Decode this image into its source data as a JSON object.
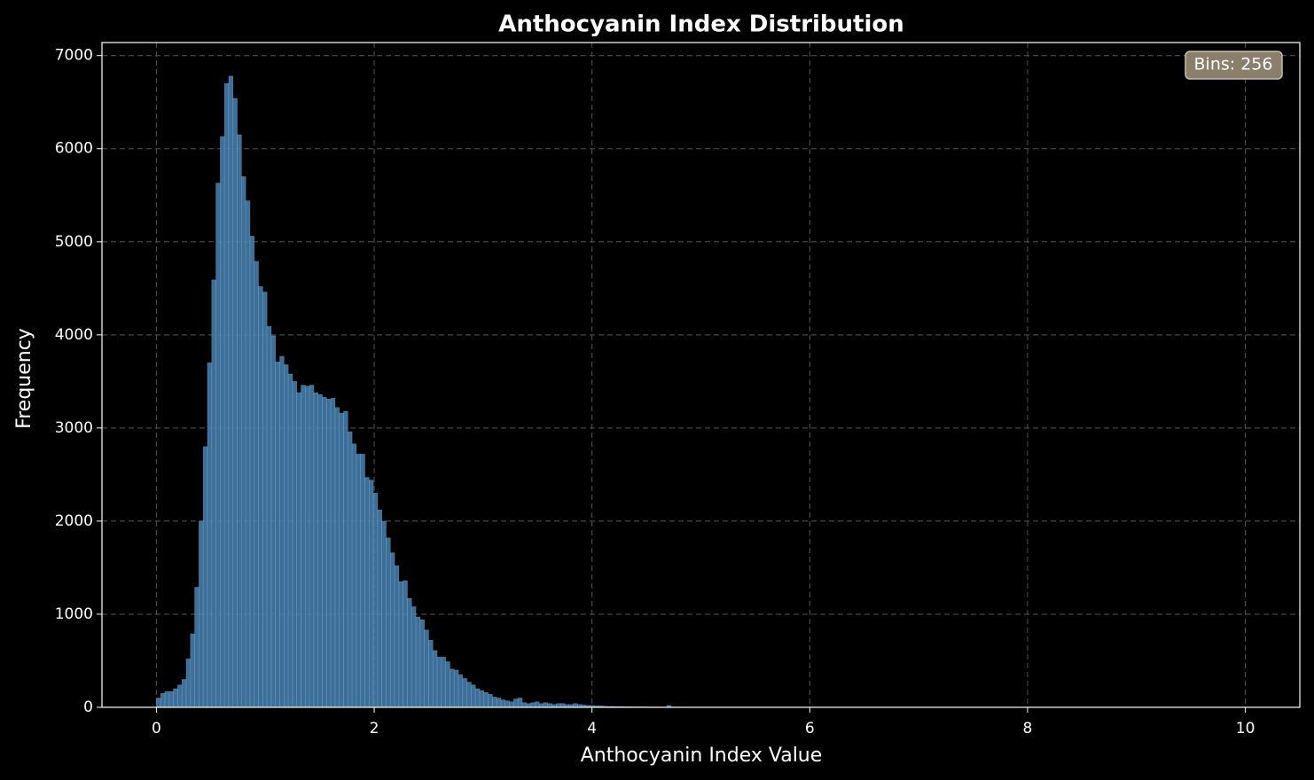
{
  "chart_data": {
    "type": "histogram",
    "title": "Anthocyanin Index Distribution",
    "x_label": "Anthocyanin Index Value",
    "y_label": "Frequency",
    "annotation": "Bins: 256",
    "color": "#4682b4",
    "grid": true,
    "xlim": [
      -0.5,
      10.5
    ],
    "ylim": [
      0,
      7140
    ],
    "xticks": [
      0,
      2,
      4,
      6,
      8,
      10
    ],
    "yticks": [
      0,
      1000,
      2000,
      3000,
      4000,
      5000,
      6000,
      7000
    ],
    "bins": [
      0,
      0.0390625,
      0.078125,
      0.1171875,
      0.15625,
      0.1953125,
      0.234375,
      0.2734375,
      0.3125,
      0.3515625,
      0.390625,
      0.4296875,
      0.46875,
      0.5078125,
      0.546875,
      0.5859375,
      0.625,
      0.6640625,
      0.703125,
      0.7421875,
      0.78125,
      0.8203125,
      0.859375,
      0.8984375,
      0.9375,
      0.9765625,
      1.015625,
      1.0546875,
      1.09375,
      1.1328125,
      1.171875,
      1.2109375,
      1.25,
      1.2890625,
      1.328125,
      1.3671875,
      1.40625,
      1.4453125,
      1.484375,
      1.5234375,
      1.5625,
      1.6015625,
      1.640625,
      1.6796875,
      1.71875,
      1.7578125,
      1.796875,
      1.8359375,
      1.875,
      1.9140625,
      1.953125,
      1.9921875,
      2.03125,
      2.0703125,
      2.109375,
      2.1484375,
      2.1875,
      2.2265625,
      2.265625,
      2.3046875,
      2.34375,
      2.3828125,
      2.421875,
      2.4609375,
      2.5,
      2.5390625,
      2.578125,
      2.6171875,
      2.65625,
      2.6953125,
      2.734375,
      2.7734375,
      2.8125,
      2.8515625,
      2.890625,
      2.9296875,
      2.96875,
      3.0078125,
      3.046875,
      3.0859375,
      3.125,
      3.1640625,
      3.203125,
      3.2421875,
      3.28125,
      3.3203125,
      3.359375,
      3.3984375,
      3.4375,
      3.4765625,
      3.515625,
      3.5546875,
      3.59375,
      3.6328125,
      3.671875,
      3.7109375,
      3.75,
      3.7890625,
      3.828125,
      3.8671875,
      3.90625,
      3.9453125,
      3.984375,
      4.0234375,
      4.0625,
      4.1015625,
      4.140625,
      4.1796875,
      4.21875,
      4.2578125,
      4.296875,
      4.3359375,
      4.375,
      4.4140625,
      4.453125,
      4.4921875,
      4.53125,
      4.5703125,
      4.609375,
      4.6484375,
      4.6875,
      4.7265625,
      4.765625,
      4.8046875,
      4.84375,
      4.8828125,
      4.921875,
      4.9609375,
      5,
      5.0390625,
      5.078125,
      5.1171875,
      5.15625,
      5.1953125,
      5.234375,
      5.2734375,
      5.3125,
      5.3515625,
      5.390625,
      5.4296875,
      5.46875,
      5.5078125,
      5.546875,
      5.5859375,
      5.625,
      5.6640625,
      5.703125,
      5.7421875,
      5.78125,
      5.8203125,
      5.859375,
      5.8984375,
      5.9375,
      5.9765625,
      6.015625,
      6.0546875,
      6.09375,
      6.1328125,
      6.171875,
      6.2109375,
      6.25,
      6.2890625,
      6.328125,
      6.3671875,
      6.40625,
      6.4453125,
      6.484375,
      6.5234375,
      6.5625,
      6.6015625,
      6.640625,
      6.6796875,
      6.71875,
      6.7578125,
      6.796875,
      6.8359375,
      6.875,
      6.9140625,
      6.953125,
      6.9921875,
      7.03125,
      7.0703125,
      7.109375,
      7.1484375,
      7.1875,
      7.2265625,
      7.265625,
      7.3046875,
      7.34375,
      7.3828125,
      7.421875,
      7.4609375,
      7.5,
      7.5390625,
      7.578125,
      7.6171875,
      7.65625,
      7.6953125,
      7.734375,
      7.7734375,
      7.8125,
      7.8515625,
      7.890625,
      7.9296875,
      7.96875,
      8.0078125,
      8.046875,
      8.0859375,
      8.125,
      8.1640625,
      8.203125,
      8.2421875,
      8.28125,
      8.3203125,
      8.359375,
      8.3984375,
      8.4375,
      8.4765625,
      8.515625,
      8.5546875,
      8.59375,
      8.6328125,
      8.671875,
      8.7109375,
      8.75,
      8.7890625,
      8.828125,
      8.8671875,
      8.90625,
      8.9453125,
      8.984375,
      9.0234375,
      9.0625,
      9.1015625,
      9.140625,
      9.1796875,
      9.21875,
      9.2578125,
      9.296875,
      9.3359375,
      9.375,
      9.4140625,
      9.453125,
      9.4921875,
      9.53125,
      9.5703125,
      9.609375,
      9.6484375,
      9.6875,
      9.7265625,
      9.765625,
      9.8046875,
      9.84375,
      9.8828125,
      9.921875,
      9.9609375,
      10
    ],
    "values": [
      100,
      150,
      170,
      170,
      200,
      240,
      300,
      520,
      790,
      1290,
      2000,
      2800,
      3700,
      4590,
      5630,
      6130,
      6700,
      6780,
      6540,
      6150,
      5700,
      5440,
      5060,
      4790,
      4520,
      4460,
      4090,
      3990,
      3710,
      3770,
      3680,
      3580,
      3500,
      3380,
      3460,
      3450,
      3460,
      3380,
      3360,
      3330,
      3310,
      3320,
      3220,
      3160,
      3180,
      2960,
      2830,
      2720,
      2720,
      2470,
      2440,
      2300,
      2120,
      2000,
      1820,
      1660,
      1520,
      1350,
      1360,
      1170,
      1080,
      970,
      940,
      830,
      720,
      610,
      540,
      540,
      490,
      410,
      400,
      350,
      310,
      270,
      240,
      200,
      180,
      160,
      140,
      110,
      100,
      80,
      70,
      60,
      90,
      100,
      50,
      40,
      50,
      60,
      40,
      50,
      40,
      30,
      40,
      40,
      30,
      30,
      40,
      30,
      25,
      20,
      20,
      15,
      15,
      12,
      10,
      10,
      8,
      8,
      6,
      6,
      5,
      5,
      5,
      4,
      4,
      3,
      3,
      3,
      20,
      3,
      2,
      2,
      2,
      1,
      1,
      1,
      1,
      1,
      0,
      0,
      0,
      0,
      0,
      0,
      0,
      0,
      0,
      0,
      0,
      0,
      0,
      0,
      0,
      0,
      0,
      0,
      0,
      0,
      0,
      0,
      0,
      0,
      0,
      0,
      0,
      0,
      0,
      0,
      0,
      0,
      0,
      0,
      0,
      0,
      0,
      0,
      0,
      0,
      0,
      0,
      0,
      0,
      0,
      0,
      0,
      0,
      0,
      0,
      0,
      0,
      0,
      0,
      0,
      0,
      0,
      0,
      0,
      0,
      0,
      0,
      0,
      0,
      0,
      0,
      0,
      0,
      0,
      0,
      0,
      0,
      0,
      0,
      0,
      0,
      0,
      0,
      0,
      0,
      0,
      0,
      0,
      0,
      0,
      0,
      0,
      0,
      0,
      0,
      0,
      0,
      0,
      0,
      0,
      0,
      0,
      0,
      0,
      0,
      0,
      0,
      0,
      0,
      0,
      0,
      0,
      0,
      0,
      0,
      0,
      0,
      0,
      0,
      0,
      0,
      0,
      0,
      0,
      0,
      0,
      0,
      0,
      0,
      0,
      0
    ]
  }
}
